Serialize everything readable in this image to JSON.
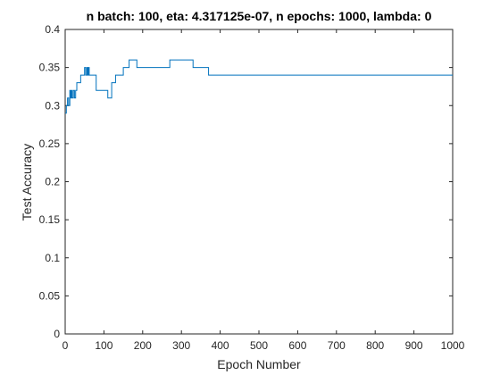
{
  "chart_data": {
    "type": "line",
    "title": "n batch: 100, eta: 4.317125e-07, n epochs: 1000, lambda: 0",
    "xlabel": "Epoch Number",
    "ylabel": "Test Accuracy",
    "xlim": [
      0,
      1000
    ],
    "ylim": [
      0,
      0.4
    ],
    "xticks": [
      0,
      100,
      200,
      300,
      400,
      500,
      600,
      700,
      800,
      900,
      1000
    ],
    "yticks": [
      0,
      0.05,
      0.1,
      0.15,
      0.2,
      0.25,
      0.3,
      0.35,
      0.4
    ],
    "xtick_labels": [
      "0",
      "100",
      "200",
      "300",
      "400",
      "500",
      "600",
      "700",
      "800",
      "900",
      "1000"
    ],
    "ytick_labels": [
      "0",
      "0.05",
      "0.1",
      "0.15",
      "0.2",
      "0.25",
      "0.3",
      "0.35",
      "0.4"
    ],
    "grid": false,
    "line_color": "#0072BD",
    "series": [
      {
        "x": [
          0,
          3,
          3,
          6,
          6,
          9,
          9,
          12,
          12,
          14,
          14,
          16,
          16,
          18,
          18,
          21,
          21,
          24,
          24,
          27,
          27,
          30,
          30,
          40,
          40,
          50,
          50,
          53,
          53,
          56,
          56,
          58,
          58,
          60,
          60,
          62,
          62,
          64,
          64,
          80,
          80,
          110,
          110,
          120,
          120,
          130,
          130,
          150,
          150,
          165,
          165,
          185,
          185,
          270,
          270,
          330,
          330,
          370,
          370,
          1000
        ],
        "y": [
          0.29,
          0.29,
          0.3,
          0.3,
          0.31,
          0.31,
          0.3,
          0.3,
          0.32,
          0.32,
          0.31,
          0.31,
          0.32,
          0.32,
          0.31,
          0.31,
          0.32,
          0.32,
          0.31,
          0.31,
          0.32,
          0.32,
          0.33,
          0.33,
          0.34,
          0.34,
          0.35,
          0.35,
          0.34,
          0.34,
          0.35,
          0.35,
          0.34,
          0.34,
          0.35,
          0.35,
          0.34,
          0.34,
          0.34,
          0.34,
          0.32,
          0.32,
          0.31,
          0.31,
          0.33,
          0.33,
          0.34,
          0.34,
          0.35,
          0.35,
          0.36,
          0.36,
          0.35,
          0.35,
          0.36,
          0.36,
          0.35,
          0.35,
          0.34,
          0.34
        ]
      }
    ]
  }
}
